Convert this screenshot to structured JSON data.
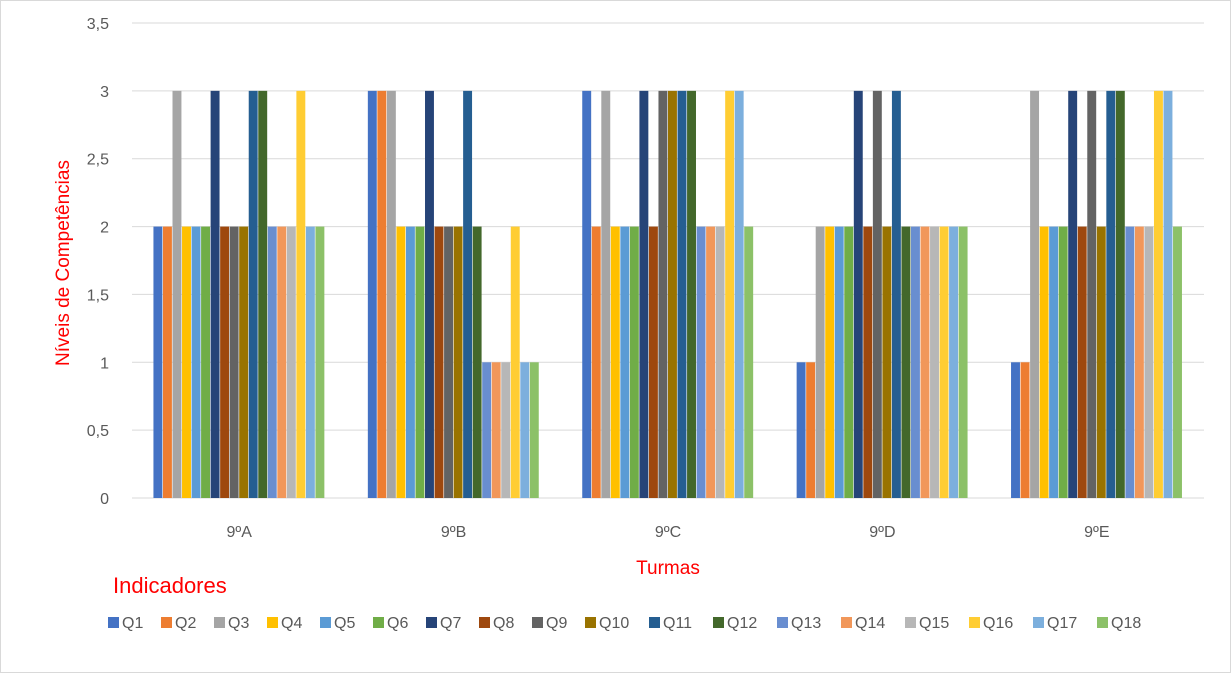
{
  "chart_data": {
    "type": "bar",
    "xlabel": "Turmas",
    "ylabel": "Níveis de Competências",
    "legend_title": "Indicadores",
    "legend_position": "bottom",
    "grid": true,
    "ylim": [
      0,
      3.5
    ],
    "y_ticks": [
      "0",
      "0,5",
      "1",
      "1,5",
      "2",
      "2,5",
      "3",
      "3,5"
    ],
    "y_tick_values": [
      0,
      0.5,
      1,
      1.5,
      2,
      2.5,
      3,
      3.5
    ],
    "categories": [
      "9ºA",
      "9ºB",
      "9ºC",
      "9ºD",
      "9ºE"
    ],
    "series": [
      {
        "name": "Q1",
        "color": "#4472c4",
        "values": [
          2,
          3,
          3,
          1,
          1
        ]
      },
      {
        "name": "Q2",
        "color": "#ed7d31",
        "values": [
          2,
          3,
          2,
          1,
          1
        ]
      },
      {
        "name": "Q3",
        "color": "#a5a5a5",
        "values": [
          3,
          3,
          3,
          2,
          3
        ]
      },
      {
        "name": "Q4",
        "color": "#ffc000",
        "values": [
          2,
          2,
          2,
          2,
          2
        ]
      },
      {
        "name": "Q5",
        "color": "#5b9bd5",
        "values": [
          2,
          2,
          2,
          2,
          2
        ]
      },
      {
        "name": "Q6",
        "color": "#70ad47",
        "values": [
          2,
          2,
          2,
          2,
          2
        ]
      },
      {
        "name": "Q7",
        "color": "#264478",
        "values": [
          3,
          3,
          3,
          3,
          3
        ]
      },
      {
        "name": "Q8",
        "color": "#9e480e",
        "values": [
          2,
          2,
          2,
          2,
          2
        ]
      },
      {
        "name": "Q9",
        "color": "#636363",
        "values": [
          2,
          2,
          3,
          3,
          3
        ]
      },
      {
        "name": "Q10",
        "color": "#997300",
        "values": [
          2,
          2,
          3,
          2,
          2
        ]
      },
      {
        "name": "Q11",
        "color": "#255e91",
        "values": [
          3,
          3,
          3,
          3,
          3
        ]
      },
      {
        "name": "Q12",
        "color": "#43682b",
        "values": [
          3,
          2,
          3,
          2,
          3
        ]
      },
      {
        "name": "Q13",
        "color": "#698ed0",
        "values": [
          2,
          1,
          2,
          2,
          2
        ]
      },
      {
        "name": "Q14",
        "color": "#f1975a",
        "values": [
          2,
          1,
          2,
          2,
          2
        ]
      },
      {
        "name": "Q15",
        "color": "#b7b7b7",
        "values": [
          2,
          1,
          2,
          2,
          2
        ]
      },
      {
        "name": "Q16",
        "color": "#ffcd33",
        "values": [
          3,
          2,
          3,
          2,
          3
        ]
      },
      {
        "name": "Q17",
        "color": "#7cafdd",
        "values": [
          2,
          1,
          3,
          2,
          3
        ]
      },
      {
        "name": "Q18",
        "color": "#8cc168",
        "values": [
          2,
          1,
          2,
          2,
          2
        ]
      }
    ]
  }
}
